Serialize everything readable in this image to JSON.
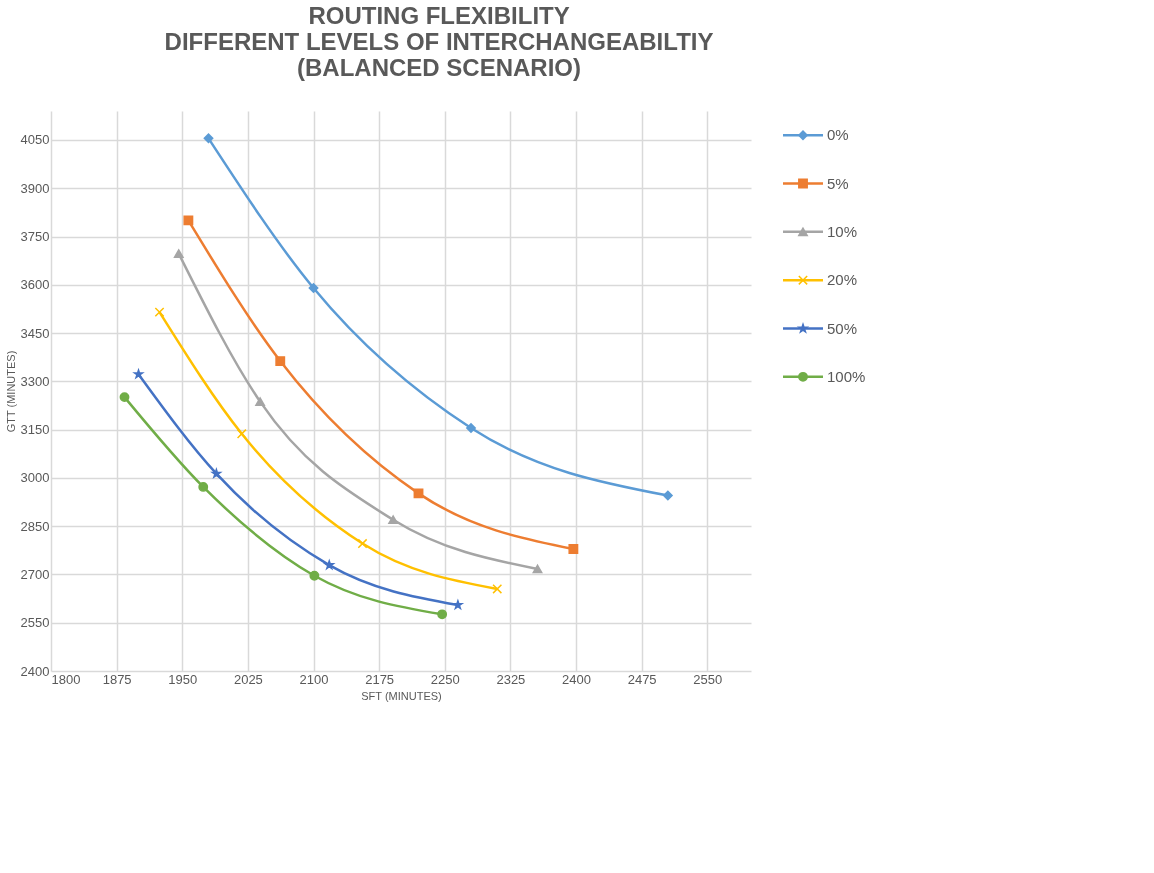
{
  "chart_data": {
    "type": "line",
    "title": [
      "ROUTING FLEXIBILITY",
      "DIFFERENT LEVELS OF INTERCHANGEABILTIY",
      "(BALANCED SCENARIO)"
    ],
    "xlabel": "SFT (MINUTES)",
    "ylabel": "GTT (MINUTES)",
    "xlim": [
      1800,
      2600
    ],
    "xticks": [
      1800,
      1875,
      1950,
      2025,
      2100,
      2175,
      2250,
      2325,
      2400,
      2475,
      2550
    ],
    "ylim": [
      2400,
      4140
    ],
    "yticks": [
      2400,
      2550,
      2700,
      2850,
      3000,
      3150,
      3300,
      3450,
      3600,
      3750,
      3900,
      4050
    ],
    "grid": true,
    "legend": "right",
    "series": [
      {
        "name": "0%",
        "color": "#5b9bd5",
        "marker": "diamond",
        "x": [
          1980,
          2100,
          2280,
          2505
        ],
        "values": [
          4055,
          3590,
          3155,
          2945
        ]
      },
      {
        "name": "5%",
        "color": "#ed7d31",
        "marker": "square",
        "x": [
          1957,
          2062,
          2220,
          2397
        ],
        "values": [
          3800,
          3363,
          2952,
          2779
        ]
      },
      {
        "name": "10%",
        "color": "#a5a5a5",
        "marker": "triangle",
        "x": [
          1946,
          2039,
          2191,
          2356
        ],
        "values": [
          3697,
          3237,
          2870,
          2717
        ]
      },
      {
        "name": "20%",
        "color": "#ffc000",
        "marker": "cross",
        "x": [
          1924,
          2018,
          2156,
          2310
        ],
        "values": [
          3515,
          3137,
          2796,
          2655
        ]
      },
      {
        "name": "50%",
        "color": "#4472c4",
        "marker": "star",
        "x": [
          1900,
          1989,
          2118,
          2265
        ],
        "values": [
          3322,
          3013,
          2729,
          2605
        ]
      },
      {
        "name": "100%",
        "color": "#70ad47",
        "marker": "circle",
        "x": [
          1884,
          1974,
          2101,
          2247
        ],
        "values": [
          3251,
          2972,
          2696,
          2576
        ]
      }
    ]
  }
}
